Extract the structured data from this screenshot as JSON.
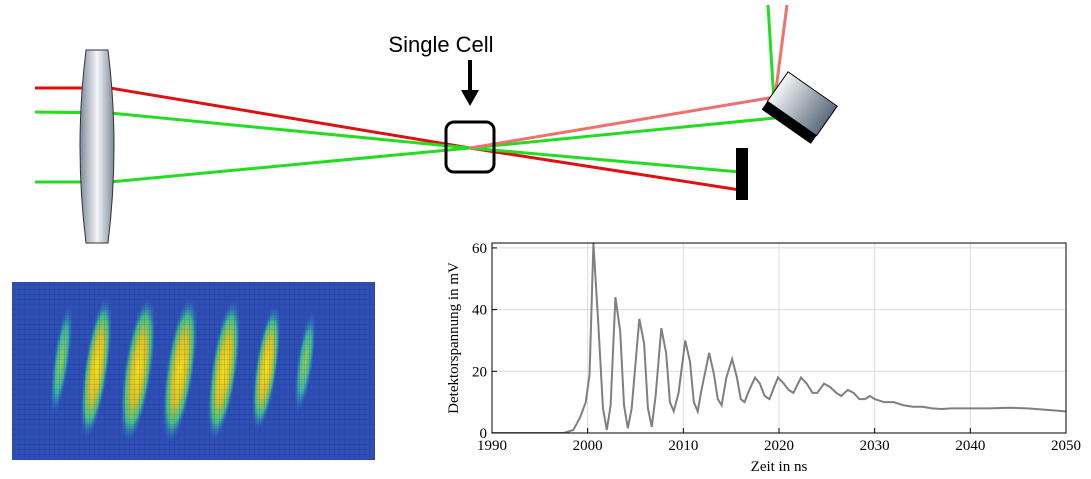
{
  "diagram": {
    "label": "Single Cell"
  },
  "chart_data": {
    "type": "line",
    "xlabel": "Zeit in ns",
    "ylabel": "Detektorspannung in mV",
    "x": [
      1990,
      1997.5,
      1998.5,
      1999.2,
      1999.8,
      2000.2,
      2000.6,
      2001.1,
      2001.6,
      2002,
      2002.4,
      2002.9,
      2003.4,
      2003.8,
      2004.2,
      2004.6,
      2005.4,
      2005.9,
      2006.3,
      2006.7,
      2007.1,
      2007.7,
      2008.2,
      2008.6,
      2009,
      2009.5,
      2010.2,
      2010.7,
      2011.1,
      2011.5,
      2011.9,
      2012.7,
      2013.2,
      2013.6,
      2014,
      2014.5,
      2015.1,
      2015.6,
      2016,
      2016.4,
      2016.9,
      2017.5,
      2018,
      2018.5,
      2019,
      2019.5,
      2019.9,
      2020.5,
      2021,
      2021.5,
      2022.3,
      2022.9,
      2023.5,
      2024,
      2024.7,
      2025.3,
      2026,
      2026.5,
      2027.2,
      2027.8,
      2028.4,
      2029,
      2029.5,
      2030,
      2031,
      2032,
      2033,
      2034,
      2035,
      2036,
      2037,
      2038,
      2040,
      2042,
      2044,
      2046,
      2048,
      2050
    ],
    "values": [
      0,
      0,
      1,
      5,
      10,
      19,
      61.5,
      36,
      8,
      1,
      9,
      44,
      33,
      9,
      1.5,
      8,
      37,
      29,
      8,
      2,
      12,
      34,
      26,
      10,
      7,
      13,
      30,
      23,
      10,
      7,
      14,
      26,
      19,
      11,
      9,
      18,
      24,
      18,
      11,
      10,
      14,
      18,
      16,
      12,
      11,
      15,
      18,
      16,
      14,
      13,
      18,
      16,
      13,
      13,
      16,
      15,
      13,
      12,
      14,
      13,
      11,
      11,
      12,
      11,
      10,
      10,
      9,
      8.5,
      8.5,
      8,
      7.8,
      8,
      8,
      8,
      8.2,
      8,
      7.5,
      7
    ],
    "color": "#7f7f7f",
    "xlim": [
      1990,
      2050
    ],
    "ylim": [
      0,
      61.6
    ],
    "xticks": [
      1990,
      2000,
      2010,
      2020,
      2030,
      2040,
      2050
    ],
    "yticks": [
      0,
      20,
      40,
      60
    ],
    "grid": true
  }
}
